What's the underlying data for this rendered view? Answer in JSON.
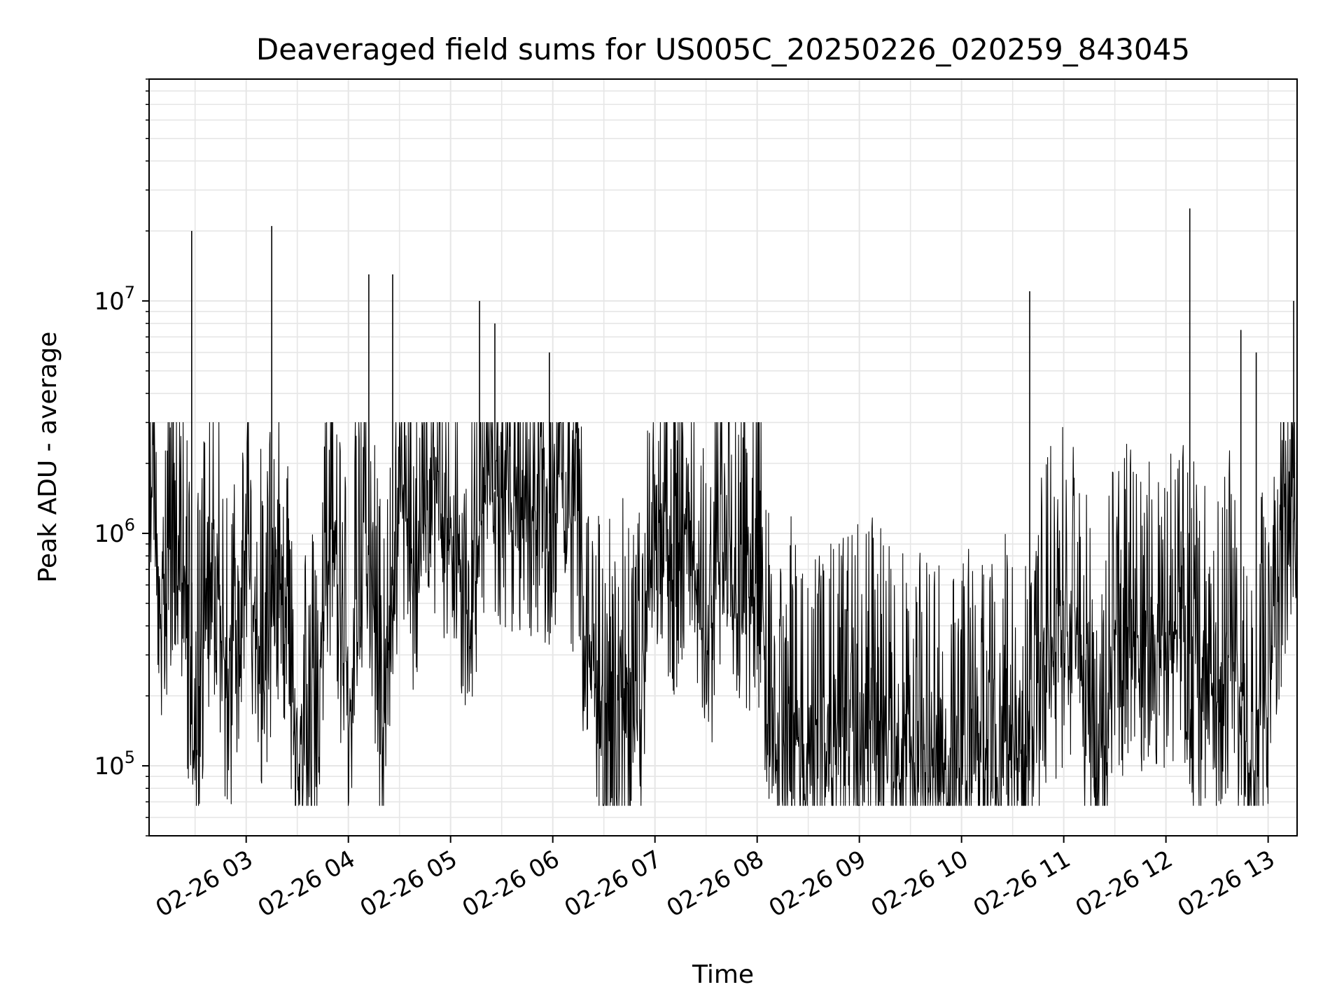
{
  "chart_data": {
    "type": "line",
    "title": "Deaveraged field sums for US005C_20250226_020259_843045",
    "xlabel": "Time",
    "ylabel": "Peak ADU - average",
    "yscale": "log",
    "ylim": [
      50000,
      90000000
    ],
    "xlim": [
      "02-26 02:03",
      "02-26 13:17"
    ],
    "grid": "major and minor, light gray",
    "line_color": "#000000",
    "x_ticks": [
      "02-26 03",
      "02-26 04",
      "02-26 05",
      "02-26 06",
      "02-26 07",
      "02-26 08",
      "02-26 09",
      "02-26 10",
      "02-26 11",
      "02-26 12",
      "02-26 13"
    ],
    "y_ticks": [
      {
        "value": 100000,
        "base": "10",
        "exp": "5"
      },
      {
        "value": 1000000,
        "base": "10",
        "exp": "6"
      },
      {
        "value": 10000000,
        "base": "10",
        "exp": "7"
      }
    ],
    "series": [
      {
        "x": [
          "02-26 02:03",
          "02-26 02:10",
          "02-26 02:20",
          "02-26 02:30",
          "02-26 02:40",
          "02-26 02:50",
          "02-26 03:00",
          "02-26 03:10",
          "02-26 03:20",
          "02-26 03:30",
          "02-26 03:40",
          "02-26 03:50",
          "02-26 04:00",
          "02-26 04:10",
          "02-26 04:20",
          "02-26 04:30",
          "02-26 04:40",
          "02-26 04:50",
          "02-26 05:00",
          "02-26 05:10",
          "02-26 05:20",
          "02-26 05:30",
          "02-26 05:40",
          "02-26 05:50",
          "02-26 06:00",
          "02-26 06:10",
          "02-26 06:20",
          "02-26 06:30",
          "02-26 06:40",
          "02-26 06:50",
          "02-26 07:00",
          "02-26 07:10",
          "02-26 07:20",
          "02-26 07:30",
          "02-26 07:40",
          "02-26 07:50",
          "02-26 08:00",
          "02-26 08:10",
          "02-26 08:20",
          "02-26 08:30",
          "02-26 08:40",
          "02-26 08:50",
          "02-26 09:00",
          "02-26 09:10",
          "02-26 09:20",
          "02-26 09:30",
          "02-26 09:40",
          "02-26 09:50",
          "02-26 10:00",
          "02-26 10:10",
          "02-26 10:20",
          "02-26 10:30",
          "02-26 10:40",
          "02-26 10:50",
          "02-26 11:00",
          "02-26 11:10",
          "02-26 11:20",
          "02-26 11:30",
          "02-26 11:40",
          "02-26 11:50",
          "02-26 12:00",
          "02-26 12:10",
          "02-26 12:20",
          "02-26 12:30",
          "02-26 12:40",
          "02-26 12:50",
          "02-26 13:00",
          "02-26 13:10",
          "02-26 13:17"
        ],
        "y": [
          3000000,
          600000,
          1200000,
          150000,
          900000,
          200000,
          1000000,
          250000,
          900000,
          130000,
          150000,
          1200000,
          200000,
          1400000,
          150000,
          1500000,
          700000,
          1600000,
          1200000,
          500000,
          1600000,
          1500000,
          1400000,
          1300000,
          1200000,
          1500000,
          350000,
          150000,
          200000,
          150000,
          1400000,
          700000,
          1500000,
          300000,
          1200000,
          500000,
          800000,
          150000,
          150000,
          120000,
          110000,
          130000,
          150000,
          170000,
          120000,
          100000,
          110000,
          100000,
          110000,
          120000,
          100000,
          150000,
          130000,
          300000,
          400000,
          350000,
          90000,
          350000,
          300000,
          400000,
          350000,
          400000,
          200000,
          250000,
          300000,
          120000,
          250000,
          1200000,
          2000000
        ]
      }
    ],
    "spikes": [
      {
        "x": "02-26 02:28",
        "y": 20000000
      },
      {
        "x": "02-26 03:15",
        "y": 21000000
      },
      {
        "x": "02-26 04:12",
        "y": 13000000
      },
      {
        "x": "02-26 04:26",
        "y": 13000000
      },
      {
        "x": "02-26 05:17",
        "y": 10000000
      },
      {
        "x": "02-26 05:26",
        "y": 8000000
      },
      {
        "x": "02-26 05:58",
        "y": 6000000
      },
      {
        "x": "02-26 10:40",
        "y": 11000000
      },
      {
        "x": "02-26 12:14",
        "y": 25000000
      },
      {
        "x": "02-26 12:44",
        "y": 7500000
      },
      {
        "x": "02-26 12:53",
        "y": 6000000
      },
      {
        "x": "02-26 13:15",
        "y": 10000000
      }
    ]
  }
}
